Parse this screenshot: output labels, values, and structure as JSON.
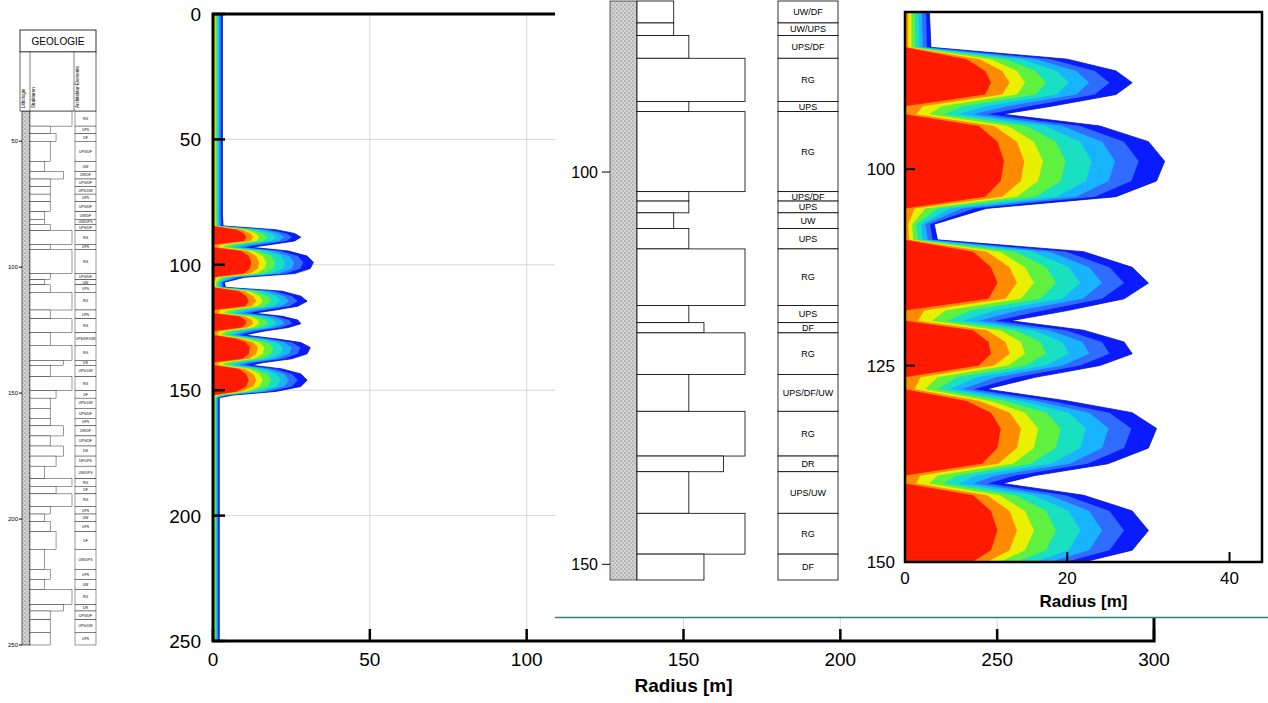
{
  "chart_data": [
    {
      "type": "contour",
      "x_label": "Radius [m]",
      "xlim": [
        0,
        300
      ],
      "ylim": [
        0,
        250
      ],
      "xticks": [
        0,
        50,
        100,
        150,
        200,
        250,
        300
      ],
      "yticks": [
        0,
        50,
        100,
        150,
        200,
        250
      ],
      "grid": true,
      "depth": [
        0,
        80,
        84.5,
        86,
        87.5,
        89,
        90.5,
        92,
        93,
        94.5,
        96.5,
        99,
        101.5,
        103.5,
        105,
        107,
        109,
        110.5,
        112.5,
        114.5,
        116.5,
        118,
        119.3,
        120.5,
        122,
        123.5,
        125,
        126.5,
        128,
        129.5,
        131,
        133,
        135.5,
        137.5,
        139,
        140,
        141.5,
        143.5,
        146,
        148.5,
        150.5,
        152,
        153,
        250
      ],
      "series": [
        {
          "color": "#0a1cff",
          "values": [
            3,
            3,
            3.2,
            20,
            26,
            28,
            26,
            18,
            12,
            24,
            30,
            32,
            31,
            26,
            10,
            3.6,
            4,
            22,
            28,
            30,
            27,
            20,
            13,
            22,
            27,
            28,
            24,
            16,
            10,
            20,
            28,
            31,
            30,
            25,
            16,
            12,
            22,
            28,
            30,
            28,
            20,
            6,
            2,
            2
          ]
        },
        {
          "color": "#2f6cff",
          "values": [
            2.6,
            2.6,
            2.7,
            18,
            23.4,
            25.2,
            23.4,
            15.3,
            10.2,
            21.6,
            27,
            28.8,
            27.9,
            23.4,
            8.5,
            3.1,
            3.4,
            19.8,
            25.2,
            27,
            24.3,
            17,
            11.1,
            19.8,
            24.3,
            25.2,
            21.6,
            13.6,
            8.5,
            18,
            25.2,
            27.9,
            27,
            22.5,
            13.6,
            10.2,
            19.8,
            25.2,
            27,
            25.2,
            18,
            5.1,
            1.7,
            1.7
          ]
        },
        {
          "color": "#19b4ff",
          "values": [
            2.1,
            2.1,
            2.2,
            16.2,
            21.1,
            22.7,
            21.1,
            12.6,
            8.4,
            19.4,
            24.3,
            25.9,
            25.1,
            21.1,
            7,
            2.5,
            2.8,
            17.8,
            22.7,
            24.3,
            21.9,
            14,
            9.1,
            17.8,
            21.9,
            22.7,
            19.4,
            11.2,
            7,
            16.2,
            22.7,
            25.1,
            24.3,
            20.3,
            11.2,
            8.4,
            17.8,
            22.7,
            24.3,
            22.7,
            16.2,
            4.2,
            1.4,
            1.4
          ]
        },
        {
          "color": "#18e0c0",
          "values": [
            1.7,
            1.7,
            1.8,
            14.4,
            18.7,
            20.2,
            18.7,
            9.9,
            6.6,
            17.3,
            21.6,
            23,
            22.3,
            18.7,
            5.5,
            2,
            2.2,
            15.8,
            20.2,
            21.6,
            19.4,
            11,
            7.2,
            15.8,
            19.4,
            20.2,
            17.3,
            8.8,
            5.5,
            14.4,
            20.2,
            22.3,
            21.6,
            18,
            8.8,
            6.6,
            15.8,
            20.2,
            21.6,
            20.2,
            14.4,
            3.3,
            1.1,
            1.1
          ]
        },
        {
          "color": "#60f040",
          "values": [
            1.2,
            1.2,
            1.3,
            12.4,
            16.1,
            17.4,
            16.1,
            7.2,
            4.8,
            14.9,
            18.6,
            19.8,
            19.2,
            16.1,
            4,
            1.4,
            1.6,
            13.6,
            17.4,
            18.6,
            16.7,
            8,
            5.2,
            13.6,
            16.7,
            17.4,
            14.9,
            6.4,
            4,
            12.4,
            17.4,
            19.2,
            18.6,
            15.5,
            6.4,
            4.8,
            13.6,
            17.4,
            18.6,
            17.4,
            12.4,
            2.4,
            0.8,
            0.8
          ]
        },
        {
          "color": "#e8f000",
          "values": [
            0.8,
            0.8,
            0.8,
            10.6,
            13.8,
            14.8,
            13.8,
            4.5,
            3,
            12.7,
            15.9,
            17,
            16.4,
            13.8,
            2.5,
            0.9,
            1,
            11.7,
            14.8,
            15.9,
            14.3,
            5,
            3.3,
            11.7,
            14.3,
            14.8,
            12.7,
            4,
            2.5,
            10.6,
            14.8,
            16.4,
            15.9,
            13.3,
            4,
            3,
            11.7,
            14.8,
            15.9,
            14.8,
            10.6,
            1.5,
            0.5,
            0.5
          ]
        },
        {
          "color": "#ff8c00",
          "values": [
            0.4,
            0.4,
            0.4,
            9.2,
            12,
            12.9,
            12,
            2.2,
            1.4,
            11,
            13.8,
            14.7,
            14.3,
            12,
            1.2,
            0.4,
            0.5,
            10.1,
            12.9,
            13.8,
            12.4,
            2.4,
            1.6,
            10.1,
            12.4,
            12.9,
            11,
            1.9,
            1.2,
            9.2,
            12.9,
            14.3,
            13.8,
            11.5,
            1.9,
            1.4,
            10.1,
            12.9,
            13.8,
            12.9,
            9.2,
            0.7,
            0.2,
            0.2
          ]
        },
        {
          "color": "#ff1a00",
          "values": [
            0,
            0,
            0,
            7.6,
            9.9,
            10.6,
            9.9,
            0,
            0,
            9.1,
            11.4,
            12.2,
            11.8,
            9.9,
            0,
            0,
            0,
            8.4,
            10.6,
            11.4,
            10.3,
            0,
            0,
            8.4,
            10.3,
            10.6,
            9.1,
            0,
            0,
            7.6,
            10.6,
            11.8,
            11.4,
            9.5,
            0,
            0,
            8.4,
            10.6,
            11.4,
            10.6,
            7.6,
            0,
            0,
            0
          ]
        }
      ]
    },
    {
      "type": "contour",
      "x_label": "Radius [m]",
      "xlim": [
        0,
        44
      ],
      "ylim": [
        80,
        150
      ],
      "xticks": [
        0,
        20,
        40
      ],
      "yticks": [
        100,
        125,
        150
      ]
    }
  ],
  "geology_logs": [
    {
      "title": "GEOLOGIE",
      "columns": [
        "Lithologie",
        "Strukturen",
        "Architektur-Elemente"
      ],
      "ylim": [
        38,
        250
      ],
      "yticks": [
        50,
        100,
        150,
        200,
        250
      ],
      "elements": [
        {
          "label": "RG",
          "top": 38,
          "bottom": 44
        },
        {
          "label": "UPS",
          "top": 44,
          "bottom": 47
        },
        {
          "label": "DF",
          "top": 47,
          "bottom": 50
        },
        {
          "label": "UPS/DF",
          "top": 50,
          "bottom": 58
        },
        {
          "label": "UW",
          "top": 58,
          "bottom": 62
        },
        {
          "label": "DR/DF",
          "top": 62,
          "bottom": 65
        },
        {
          "label": "UPS/DF",
          "top": 65,
          "bottom": 68
        },
        {
          "label": "UPS/UW",
          "top": 68,
          "bottom": 71
        },
        {
          "label": "UPS",
          "top": 71,
          "bottom": 74
        },
        {
          "label": "UPS/DF",
          "top": 74,
          "bottom": 78
        },
        {
          "label": "UW/DF",
          "top": 78,
          "bottom": 81
        },
        {
          "label": "UW/UPS",
          "top": 81,
          "bottom": 83
        },
        {
          "label": "UPS/DF",
          "top": 83,
          "bottom": 85.5
        },
        {
          "label": "RG",
          "top": 85.5,
          "bottom": 91
        },
        {
          "label": "UPS",
          "top": 91,
          "bottom": 93
        },
        {
          "label": "RG",
          "top": 93,
          "bottom": 102.5
        },
        {
          "label": "UPS/DF",
          "top": 102.5,
          "bottom": 105
        },
        {
          "label": "UW",
          "top": 105,
          "bottom": 107
        },
        {
          "label": "UPS",
          "top": 107,
          "bottom": 110
        },
        {
          "label": "RG",
          "top": 110,
          "bottom": 117
        },
        {
          "label": "UPS",
          "top": 117,
          "bottom": 120.5
        },
        {
          "label": "RG",
          "top": 120.5,
          "bottom": 126
        },
        {
          "label": "UPS/DF/UW",
          "top": 126,
          "bottom": 131
        },
        {
          "label": "RG",
          "top": 131,
          "bottom": 137
        },
        {
          "label": "DR",
          "top": 137,
          "bottom": 139
        },
        {
          "label": "UPS/UW",
          "top": 139,
          "bottom": 143.5
        },
        {
          "label": "RG",
          "top": 143.5,
          "bottom": 149
        },
        {
          "label": "DF",
          "top": 149,
          "bottom": 152
        },
        {
          "label": "UPS/UW",
          "top": 152,
          "bottom": 156
        },
        {
          "label": "UPS/DF",
          "top": 156,
          "bottom": 160
        },
        {
          "label": "UPS",
          "top": 160,
          "bottom": 163
        },
        {
          "label": "DR/DF",
          "top": 163,
          "bottom": 167
        },
        {
          "label": "UPS/DF",
          "top": 167,
          "bottom": 171
        },
        {
          "label": "DR",
          "top": 171,
          "bottom": 175
        },
        {
          "label": "DF/UPS",
          "top": 175,
          "bottom": 179
        },
        {
          "label": "UW/UPS",
          "top": 179,
          "bottom": 184
        },
        {
          "label": "RG",
          "top": 184,
          "bottom": 187
        },
        {
          "label": "DF",
          "top": 187,
          "bottom": 190
        },
        {
          "label": "RG",
          "top": 190,
          "bottom": 195
        },
        {
          "label": "UPS",
          "top": 195,
          "bottom": 198
        },
        {
          "label": "UW",
          "top": 198,
          "bottom": 201
        },
        {
          "label": "UPS",
          "top": 201,
          "bottom": 205
        },
        {
          "label": "DF",
          "top": 205,
          "bottom": 212
        },
        {
          "label": "UW/UPS",
          "top": 212,
          "bottom": 220
        },
        {
          "label": "UPS",
          "top": 220,
          "bottom": 224
        },
        {
          "label": "UW",
          "top": 224,
          "bottom": 228
        },
        {
          "label": "RG",
          "top": 228,
          "bottom": 234
        },
        {
          "label": "DR",
          "top": 234,
          "bottom": 236.5
        },
        {
          "label": "UPS/DF",
          "top": 236.5,
          "bottom": 240
        },
        {
          "label": "UPS/UW",
          "top": 240,
          "bottom": 245
        },
        {
          "label": "UPS",
          "top": 245,
          "bottom": 250
        }
      ]
    },
    {
      "ylim": [
        78.2,
        152
      ],
      "yticks": [
        100,
        150
      ],
      "elements": [
        {
          "label": "UW/DF",
          "top": 78.2,
          "bottom": 81
        },
        {
          "label": "UW/UPS",
          "top": 81,
          "bottom": 82.6
        },
        {
          "label": "UPS/DF",
          "top": 82.6,
          "bottom": 85.5
        },
        {
          "label": "RG",
          "top": 85.5,
          "bottom": 91
        },
        {
          "label": "UPS",
          "top": 91,
          "bottom": 92.3
        },
        {
          "label": "RG",
          "top": 92.3,
          "bottom": 102.5
        },
        {
          "label": "UPS/DF",
          "top": 102.5,
          "bottom": 103.7
        },
        {
          "label": "UPS",
          "top": 103.7,
          "bottom": 105.2
        },
        {
          "label": "UW",
          "top": 105.2,
          "bottom": 107.2
        },
        {
          "label": "UPS",
          "top": 107.2,
          "bottom": 109.8
        },
        {
          "label": "RG",
          "top": 109.8,
          "bottom": 117
        },
        {
          "label": "UPS",
          "top": 117,
          "bottom": 119.2
        },
        {
          "label": "DF",
          "top": 119.2,
          "bottom": 120.5
        },
        {
          "label": "RG",
          "top": 120.5,
          "bottom": 125.8
        },
        {
          "label": "UPS/DF/UW",
          "top": 125.8,
          "bottom": 130.5
        },
        {
          "label": "RG",
          "top": 130.5,
          "bottom": 136.2
        },
        {
          "label": "DR",
          "top": 136.2,
          "bottom": 138.2
        },
        {
          "label": "UPS/UW",
          "top": 138.2,
          "bottom": 143.5
        },
        {
          "label": "RG",
          "top": 143.5,
          "bottom": 148.7
        },
        {
          "label": "DF",
          "top": 148.7,
          "bottom": 152
        }
      ]
    }
  ]
}
